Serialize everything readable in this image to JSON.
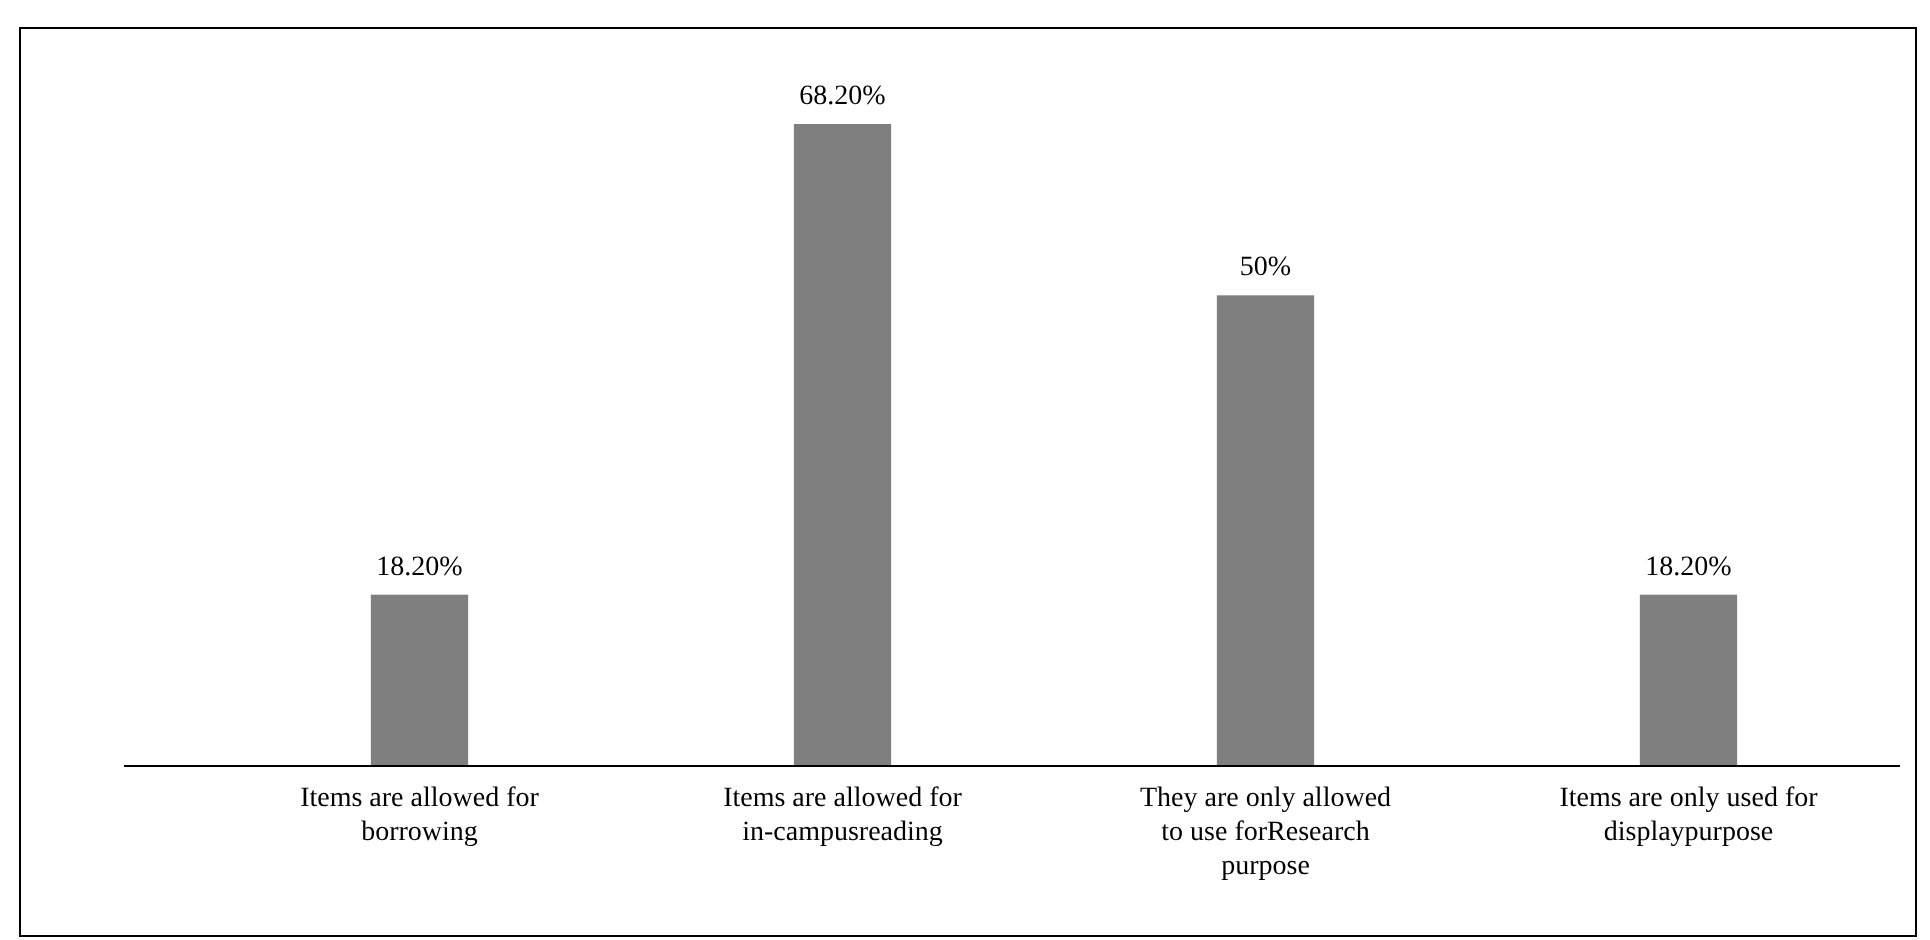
{
  "chart_data": {
    "type": "bar",
    "categories": [
      "Items are allowed for borrowing",
      "Items are allowed for in-campusreading",
      "They are only allowed to use forResearch purpose",
      "Items are only used for displaypurpose"
    ],
    "values": [
      18.2,
      68.2,
      50,
      18.2
    ],
    "value_labels": [
      "18.20%",
      "68.20%",
      "50%",
      "18.20%"
    ],
    "color": "#7f7f7f"
  }
}
